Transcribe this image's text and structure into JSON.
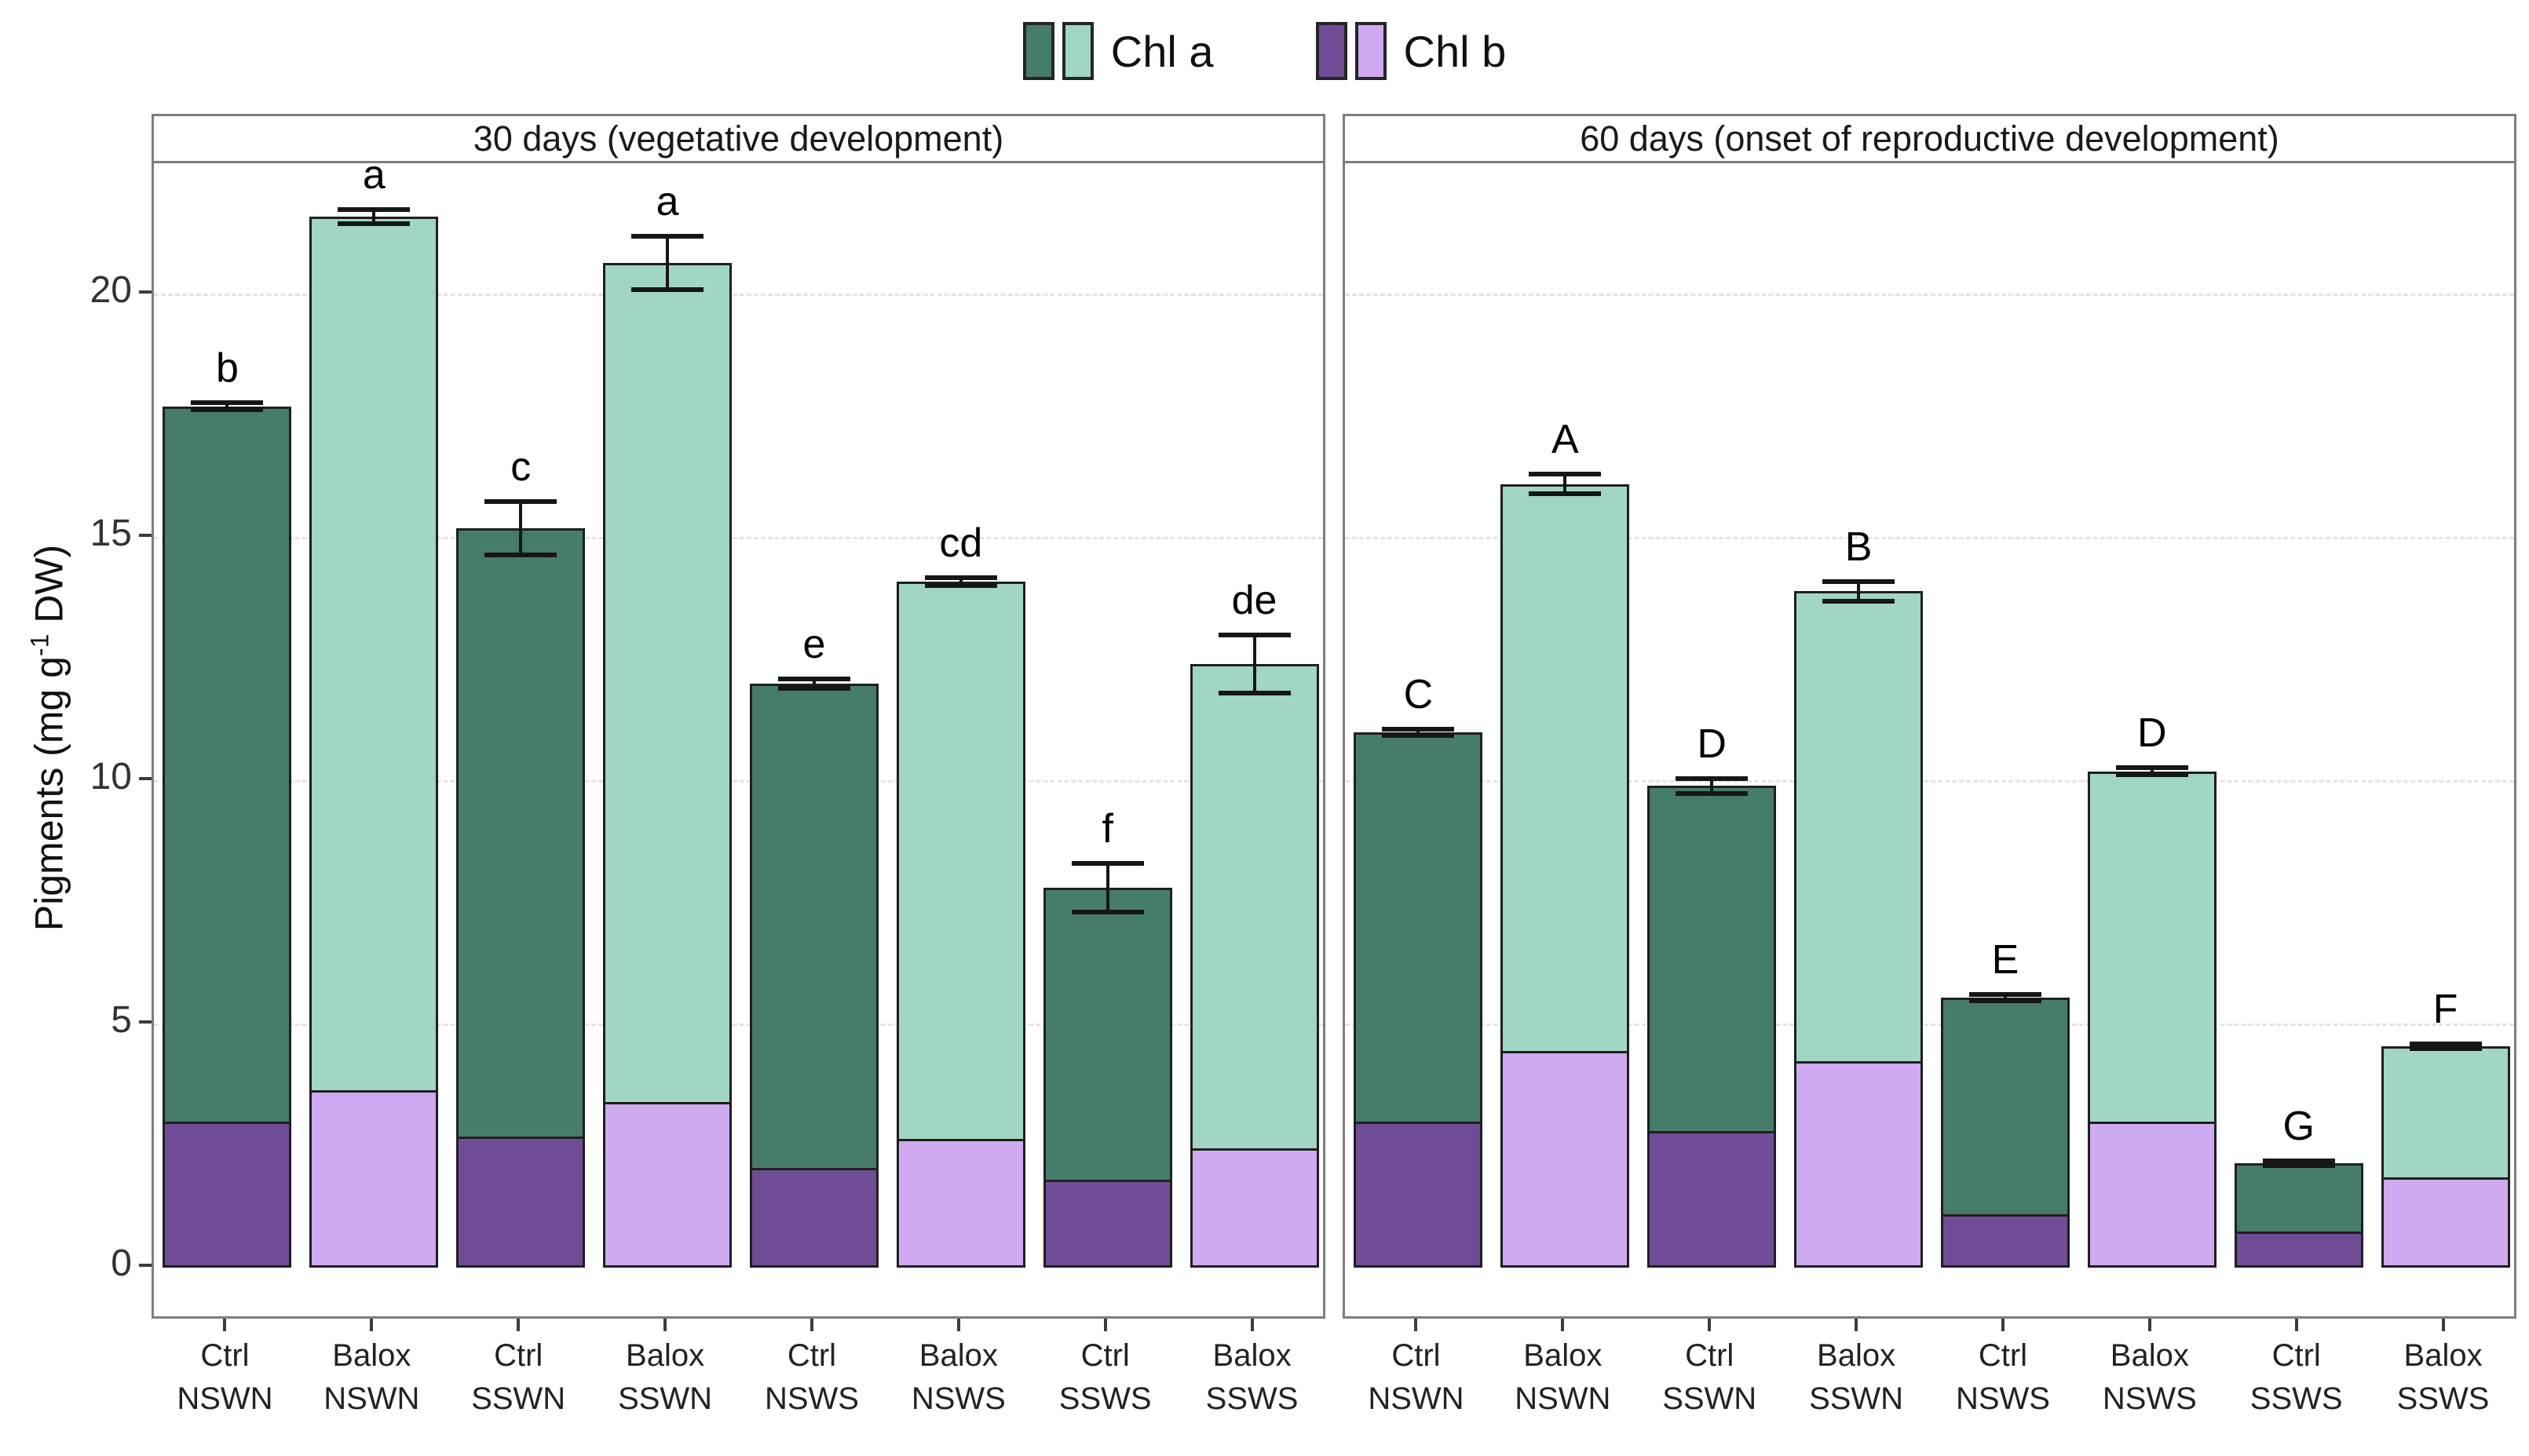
{
  "chart_data": {
    "type": "bar",
    "subtype": "stacked-grouped-faceted",
    "title": "",
    "ylabel_parts": {
      "prefix": "Pigments (mg g",
      "sup": "-1",
      "suffix": " DW)"
    },
    "ylabel_plain": "Pigments (mg g-1 DW)",
    "ylim": [
      0,
      22.7
    ],
    "yticks": [
      0,
      5,
      10,
      15,
      20
    ],
    "grid": "dashed horizontal at 5,10,15,20",
    "legend_position": "top-center",
    "legend": [
      {
        "label": "Chl a",
        "colors": [
          "#467c6a",
          "#a0d6c3"
        ]
      },
      {
        "label": "Chl b",
        "colors": [
          "#714c96",
          "#d0aaf0"
        ]
      }
    ],
    "series_note": "Each bar is stacked: Chl b on bottom (purple), Chl a on top (green). Dark colors = Ctrl, light colors = Balox. Error bars show +/- on the total; letters are significance groups.",
    "panels": [
      {
        "label": "30 days (vegetative development)",
        "bars": [
          {
            "group": "Ctrl",
            "condition": "NSWN",
            "variant": "ctrl",
            "chl_b": 3.0,
            "chl_a": 14.7,
            "total": 17.7,
            "error": 0.07,
            "letter": "b"
          },
          {
            "group": "Balox",
            "condition": "NSWN",
            "variant": "balox",
            "chl_b": 3.65,
            "chl_a": 17.95,
            "total": 21.6,
            "error": 0.15,
            "letter": "a"
          },
          {
            "group": "Ctrl",
            "condition": "SSWN",
            "variant": "ctrl",
            "chl_b": 2.7,
            "chl_a": 12.5,
            "total": 15.2,
            "error": 0.55,
            "letter": "c"
          },
          {
            "group": "Balox",
            "condition": "SSWN",
            "variant": "balox",
            "chl_b": 3.4,
            "chl_a": 17.25,
            "total": 20.65,
            "error": 0.55,
            "letter": "a"
          },
          {
            "group": "Ctrl",
            "condition": "NSWS",
            "variant": "ctrl",
            "chl_b": 2.05,
            "chl_a": 9.95,
            "total": 12.0,
            "error": 0.1,
            "letter": "e"
          },
          {
            "group": "Balox",
            "condition": "NSWS",
            "variant": "balox",
            "chl_b": 2.65,
            "chl_a": 11.45,
            "total": 14.1,
            "error": 0.08,
            "letter": "cd"
          },
          {
            "group": "Ctrl",
            "condition": "SSWS",
            "variant": "ctrl",
            "chl_b": 1.8,
            "chl_a": 6.0,
            "total": 7.8,
            "error": 0.5,
            "letter": "f"
          },
          {
            "group": "Balox",
            "condition": "SSWS",
            "variant": "balox",
            "chl_b": 2.45,
            "chl_a": 9.95,
            "total": 12.4,
            "error": 0.6,
            "letter": "de"
          }
        ]
      },
      {
        "label": "60 days (onset of reproductive development)",
        "bars": [
          {
            "group": "Ctrl",
            "condition": "NSWN",
            "variant": "ctrl",
            "chl_b": 3.0,
            "chl_a": 8.0,
            "total": 11.0,
            "error": 0.06,
            "letter": "C"
          },
          {
            "group": "Balox",
            "condition": "NSWN",
            "variant": "balox",
            "chl_b": 4.45,
            "chl_a": 11.65,
            "total": 16.1,
            "error": 0.2,
            "letter": "A"
          },
          {
            "group": "Ctrl",
            "condition": "SSWN",
            "variant": "ctrl",
            "chl_b": 2.8,
            "chl_a": 7.1,
            "total": 9.9,
            "error": 0.15,
            "letter": "D"
          },
          {
            "group": "Balox",
            "condition": "SSWN",
            "variant": "balox",
            "chl_b": 4.25,
            "chl_a": 9.65,
            "total": 13.9,
            "error": 0.2,
            "letter": "B"
          },
          {
            "group": "Ctrl",
            "condition": "NSWS",
            "variant": "ctrl",
            "chl_b": 1.1,
            "chl_a": 4.45,
            "total": 5.55,
            "error": 0.06,
            "letter": "E"
          },
          {
            "group": "Balox",
            "condition": "NSWS",
            "variant": "balox",
            "chl_b": 3.0,
            "chl_a": 7.2,
            "total": 10.2,
            "error": 0.07,
            "letter": "D"
          },
          {
            "group": "Ctrl",
            "condition": "SSWS",
            "variant": "ctrl",
            "chl_b": 0.75,
            "chl_a": 1.4,
            "total": 2.15,
            "error": 0.05,
            "letter": "G"
          },
          {
            "group": "Balox",
            "condition": "SSWS",
            "variant": "balox",
            "chl_b": 1.85,
            "chl_a": 2.7,
            "total": 4.55,
            "error": 0.05,
            "letter": "F"
          }
        ]
      }
    ]
  }
}
